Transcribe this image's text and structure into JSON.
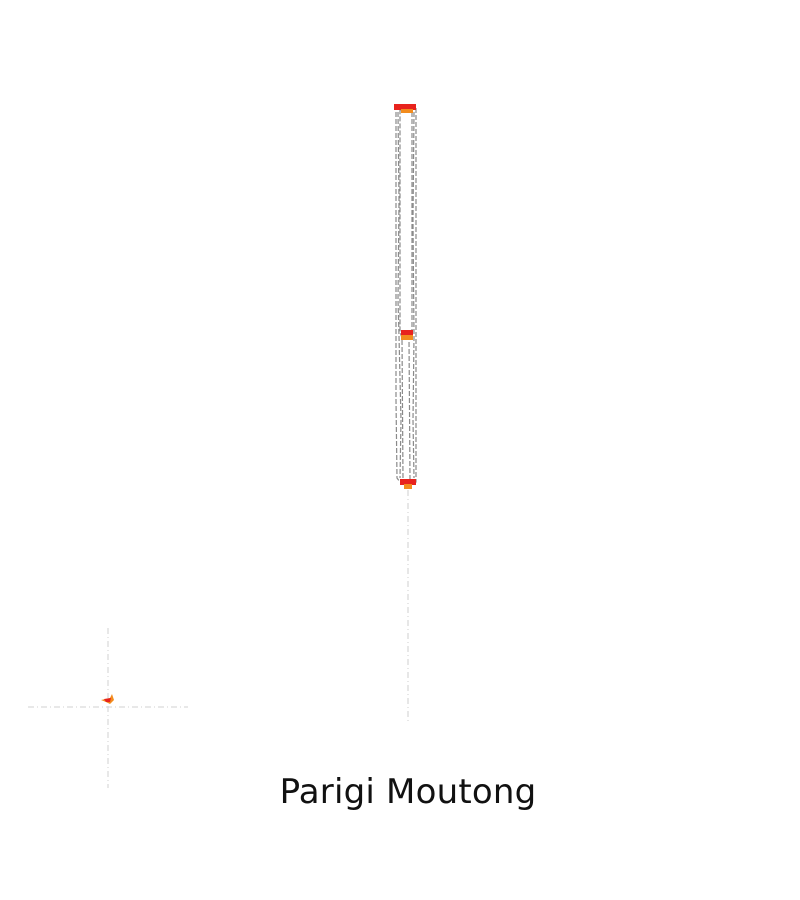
{
  "map": {
    "region_name": "Parigi Moutong",
    "colors": {
      "background": "#ffffff",
      "boundary_outline": "#8a8a8a",
      "crosshair": "#cfcfcf",
      "marker_primary": "#e8231d",
      "marker_secondary": "#f28c1e"
    },
    "layers": [
      "region-boundary-outline",
      "locator-crosshair",
      "location-markers"
    ]
  }
}
